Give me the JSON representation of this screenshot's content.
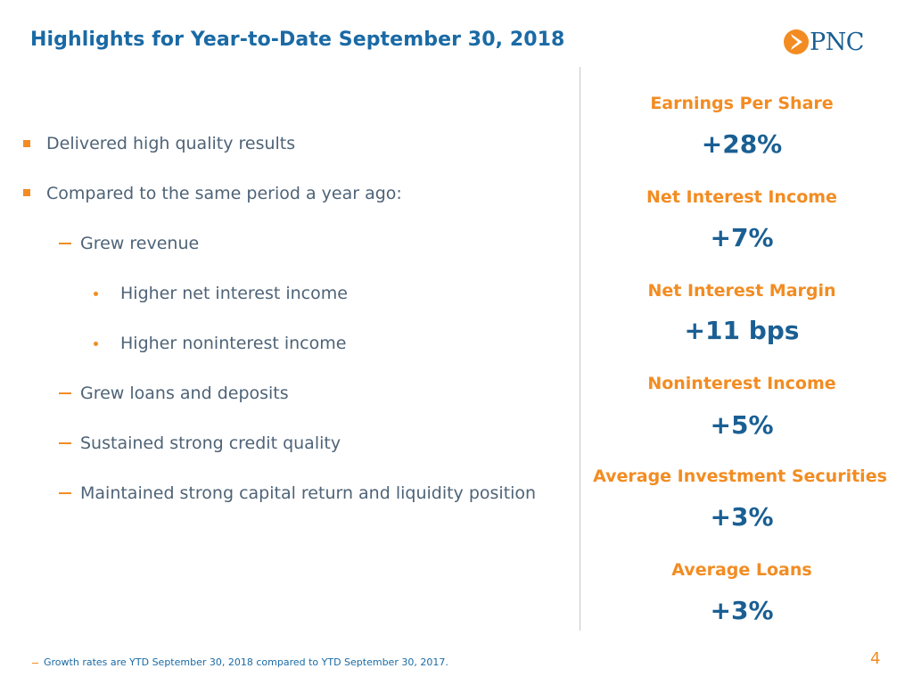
{
  "header": {
    "title": "Highlights for Year-to-Date September 30, 2018",
    "logo_text": "PNC",
    "logo_icon": "pnc-arrow-logo-icon"
  },
  "bullets": [
    {
      "level": 1,
      "text": "Delivered high quality results"
    },
    {
      "level": 1,
      "text": "Compared to the same period a year ago:"
    },
    {
      "level": 2,
      "text": "Grew revenue"
    },
    {
      "level": 3,
      "text": "Higher net interest income"
    },
    {
      "level": 3,
      "text": "Higher noninterest income"
    },
    {
      "level": 2,
      "text": "Grew loans and deposits"
    },
    {
      "level": 2,
      "text": "Sustained strong credit quality"
    },
    {
      "level": 2,
      "text": "Maintained strong capital return and liquidity position"
    }
  ],
  "metrics": [
    {
      "label": "Earnings Per Share",
      "value": "+28%"
    },
    {
      "label": "Net Interest Income",
      "value": "+7%"
    },
    {
      "label": "Net Interest Margin",
      "value": "+11 bps"
    },
    {
      "label": "Noninterest Income",
      "value": "+5%"
    },
    {
      "label": "Average Investment Securities",
      "value": "+3%"
    },
    {
      "label": "Average Loans",
      "value": "+3%"
    }
  ],
  "footer": {
    "footnote": "Growth rates are YTD September 30, 2018 compared to YTD September 30, 2017.",
    "page_number": "4"
  },
  "colors": {
    "title_blue": "#1a6aa5",
    "value_blue": "#1a5f93",
    "accent_orange": "#f28c22",
    "body_gray": "#4e6377"
  }
}
